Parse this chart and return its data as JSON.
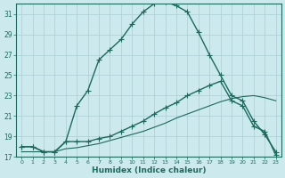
{
  "xlabel": "Humidex (Indice chaleur)",
  "bg_color": "#cce9ed",
  "grid_color": "#aacdd3",
  "line_color": "#1a6b5c",
  "xlim": [
    -0.5,
    23.5
  ],
  "ylim": [
    17,
    32
  ],
  "xticks": [
    0,
    1,
    2,
    3,
    4,
    5,
    6,
    7,
    8,
    9,
    10,
    11,
    12,
    13,
    14,
    15,
    16,
    17,
    18,
    19,
    20,
    21,
    22,
    23
  ],
  "yticks": [
    17,
    19,
    21,
    23,
    25,
    27,
    29,
    31
  ],
  "curve1_x": [
    0,
    1,
    2,
    3,
    4,
    5,
    6,
    7,
    8,
    9,
    10,
    11,
    12,
    13,
    14,
    15,
    16,
    17,
    18,
    19,
    20,
    21,
    22,
    23
  ],
  "curve1_y": [
    18.0,
    18.0,
    17.5,
    17.5,
    18.5,
    22.0,
    23.5,
    26.5,
    27.5,
    28.5,
    30.0,
    31.2,
    32.0,
    32.2,
    31.8,
    31.2,
    29.2,
    27.0,
    25.0,
    23.0,
    22.5,
    20.5,
    19.2,
    17.5
  ],
  "curve2_x": [
    0,
    1,
    2,
    3,
    4,
    5,
    6,
    7,
    8,
    9,
    10,
    11,
    12,
    13,
    14,
    15,
    16,
    17,
    18,
    19,
    20,
    21,
    22,
    23
  ],
  "curve2_y": [
    18.0,
    18.0,
    17.5,
    17.5,
    18.5,
    18.5,
    18.5,
    18.8,
    19.0,
    19.5,
    20.0,
    20.5,
    21.2,
    21.8,
    22.3,
    23.0,
    23.5,
    24.0,
    24.4,
    22.5,
    22.0,
    20.0,
    19.5,
    17.2
  ],
  "curve3_x": [
    0,
    1,
    2,
    3,
    4,
    5,
    6,
    7,
    8,
    9,
    10,
    11,
    12,
    13,
    14,
    15,
    16,
    17,
    18,
    19,
    20,
    21,
    22,
    23
  ],
  "curve3_y": [
    17.5,
    17.5,
    17.5,
    17.5,
    17.8,
    17.9,
    18.1,
    18.3,
    18.6,
    18.9,
    19.2,
    19.5,
    19.9,
    20.3,
    20.8,
    21.2,
    21.6,
    22.0,
    22.4,
    22.7,
    22.9,
    23.0,
    22.8,
    22.5
  ]
}
